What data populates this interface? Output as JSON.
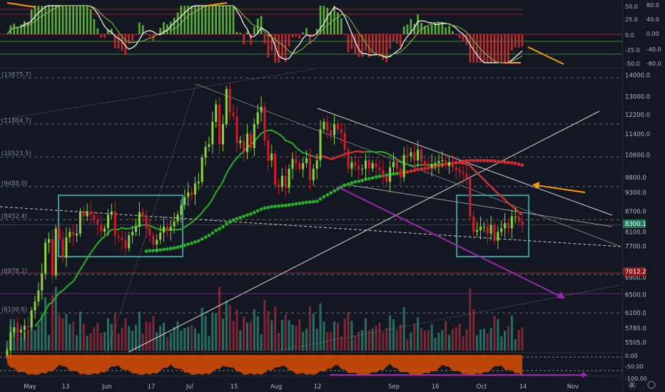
{
  "colors": {
    "background": "#131722",
    "grid_dashed": "#888888",
    "ma_green": "#26b126",
    "ma_red": "#d32f2f",
    "candle_up": "#8bd23c",
    "candle_down": "#d01c28",
    "box": "#2b9c9c",
    "trend_white": "#cfcfcf",
    "arrow_orange": "#ff9800",
    "arrow_purple": "#9c27b0",
    "price_tag": "#1e7a5e",
    "price_tag_red": "#8b1a1a",
    "osc_fill": "#e65100",
    "purple_line": "#9c27b0"
  },
  "top_axis": {
    "inner_labels": [
      "50.0",
      "25.0",
      "0.0",
      "-25.0",
      "-50.0"
    ],
    "outer_labels": [
      "80.0",
      "40.0",
      "0.00",
      "-40.0",
      "-80.0"
    ]
  },
  "main_axis": {
    "labels": [
      "14000.0",
      "13000.0",
      "12200.0",
      "11400.0",
      "10600.0",
      "9800.0",
      "9300.0",
      "8700.0",
      "8100.0",
      "7700.0",
      "6900.0",
      "6500.0",
      "6100.0",
      "5780.0",
      "5505.0"
    ]
  },
  "fib_labels": [
    "(13875.7)",
    "(11804.7)",
    "(10523.5)",
    "(9488.0)",
    "(8452.4)",
    "(6978.2)",
    "(6100.6)"
  ],
  "price_tags": {
    "current": "8300.1",
    "level": "7012.2"
  },
  "bottom_axis": {
    "labels": [
      "0.00",
      "-50.00",
      "-100.00"
    ]
  },
  "x_axis": {
    "labels": [
      "May",
      "13",
      "Jun",
      "17",
      "Jul",
      "15",
      "Aug",
      "12",
      "Sep",
      "16",
      "Oct",
      "14",
      "Nov"
    ]
  },
  "footer_icon": "A",
  "chart_data": {
    "type": "candlestick",
    "title": "",
    "ylim": [
      5400,
      14200
    ],
    "y_scale": "log",
    "x_start": "2019-05-01",
    "bars_per_day": 1,
    "x_labels": [
      "May",
      "13",
      "Jun",
      "17",
      "Jul",
      "15",
      "Aug",
      "12",
      "Sep",
      "16",
      "Oct",
      "14",
      "Nov"
    ],
    "close": [
      5350,
      5700,
      5800,
      5700,
      5750,
      5830,
      5800,
      6150,
      6350,
      6600,
      7000,
      7800,
      7900,
      6950,
      8200,
      7900,
      7400,
      7950,
      8100,
      8000,
      8050,
      8700,
      8550,
      8700,
      8600,
      8450,
      8300,
      8100,
      8200,
      8600,
      8700,
      7990,
      7950,
      7870,
      7650,
      8000,
      8100,
      8250,
      8680,
      8550,
      8200,
      8000,
      7750,
      7880,
      8080,
      8250,
      8150,
      8250,
      8400,
      8600,
      8900,
      9150,
      9300,
      9230,
      9600,
      9650,
      10500,
      10900,
      11000,
      11900,
      12650,
      11000,
      11800,
      13350,
      12300,
      12130,
      11050,
      11150,
      10700,
      11420,
      10850,
      11800,
      12300,
      12550,
      11150,
      10400,
      10650,
      9550,
      9480,
      9850,
      9450,
      10100,
      10450,
      10300,
      10080,
      10300,
      10480,
      9700,
      10100,
      10400,
      11600,
      11900,
      11550,
      11350,
      11800,
      11600,
      11450,
      10800,
      10100,
      10330,
      10200,
      10080,
      10100,
      10400,
      10100,
      10300,
      10150,
      10050,
      9850,
      9650,
      10150,
      10350,
      10100,
      9800,
      10600,
      10550,
      10700,
      10400,
      10800,
      10370,
      10200,
      10150,
      10250,
      10300,
      10380,
      10400,
      10200,
      10330,
      10150,
      10050,
      9970,
      9920,
      9770,
      8550,
      8100,
      8150,
      8250,
      8250,
      8050,
      8300,
      7850,
      8100,
      8200,
      8350,
      8200,
      8550,
      8550,
      8400,
      8300
    ],
    "series": [
      {
        "name": "",
        "color": "#26b126",
        "role": "moving average"
      },
      {
        "name": "",
        "color": "#d32f2f",
        "role": "moving average"
      }
    ],
    "annotations": {
      "fib_levels": [
        13875.7,
        11804.7,
        10523.5,
        9488.0,
        8452.4,
        6978.2,
        6100.6
      ],
      "current_price": 8300.1,
      "level_price": 7012.2
    }
  }
}
